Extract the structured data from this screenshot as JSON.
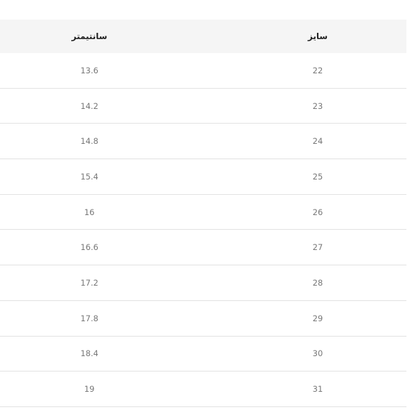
{
  "table": {
    "headers": {
      "centimeter": "سانتیمتر",
      "size": "سایز"
    },
    "rows": [
      {
        "centimeter": "13.6",
        "size": "22"
      },
      {
        "centimeter": "14.2",
        "size": "23"
      },
      {
        "centimeter": "14.8",
        "size": "24"
      },
      {
        "centimeter": "15.4",
        "size": "25"
      },
      {
        "centimeter": "16",
        "size": "26"
      },
      {
        "centimeter": "16.6",
        "size": "27"
      },
      {
        "centimeter": "17.2",
        "size": "28"
      },
      {
        "centimeter": "17.8",
        "size": "29"
      },
      {
        "centimeter": "18.4",
        "size": "30"
      },
      {
        "centimeter": "19",
        "size": "31"
      }
    ]
  }
}
